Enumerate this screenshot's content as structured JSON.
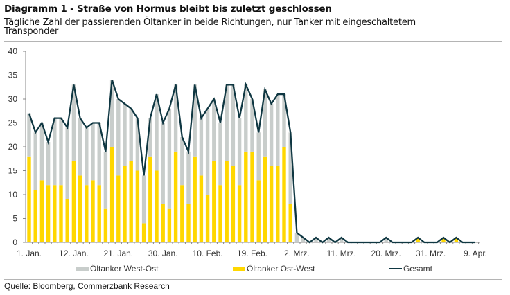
{
  "chart_data": {
    "type": "bar",
    "stacked": true,
    "title": "Diagramm 1 - Straße von Hormus bleibt bis zuletzt geschlossen",
    "subtitle": "Tägliche Zahl der passierenden Öltanker in beide Richtungen, nur Tanker mit eingeschaltetem Transponder",
    "xlabel": "",
    "ylabel": "",
    "ylim": [
      0,
      40
    ],
    "yticks": [
      "0",
      "5",
      "10",
      "15",
      "20",
      "25",
      "30",
      "35",
      "40"
    ],
    "xtick_labels": [
      {
        "index": 0,
        "label": "1. Jan."
      },
      {
        "index": 7,
        "label": "12. Jan."
      },
      {
        "index": 14,
        "label": "21. Jan."
      },
      {
        "index": 21,
        "label": "30. Jan."
      },
      {
        "index": 28,
        "label": "10. Feb."
      },
      {
        "index": 35,
        "label": "19. Feb."
      },
      {
        "index": 42,
        "label": "2. Mrz."
      },
      {
        "index": 49,
        "label": "11. Mrz."
      },
      {
        "index": 56,
        "label": "20. Mrz."
      },
      {
        "index": 63,
        "label": "31. Mrz."
      },
      {
        "index": 70,
        "label": "9. Apr."
      }
    ],
    "legend_position": "bottom",
    "series": [
      {
        "name": "Öltanker West-Ost",
        "type": "bar",
        "color": "#c8cdcb",
        "values": [
          9,
          12,
          12,
          9,
          14,
          14,
          15,
          16,
          12,
          12,
          12,
          13,
          12,
          14,
          16,
          13,
          11,
          11,
          10,
          8,
          16,
          17,
          21,
          14,
          10,
          11,
          15,
          12,
          18,
          13,
          13,
          16,
          17,
          14,
          14,
          11,
          10,
          14,
          13,
          15,
          11,
          15,
          2,
          1,
          0,
          1,
          0,
          1,
          0,
          1,
          0,
          0,
          0,
          0,
          0,
          0,
          1,
          0,
          0,
          0,
          0,
          0,
          0,
          0,
          0,
          0,
          0,
          0,
          0,
          0,
          0
        ]
      },
      {
        "name": "Öltanker Ost-West",
        "type": "bar",
        "color": "#ffd700",
        "values": [
          18,
          11,
          13,
          12,
          12,
          12,
          9,
          17,
          14,
          12,
          13,
          12,
          7,
          20,
          14,
          16,
          17,
          15,
          4,
          18,
          15,
          8,
          7,
          19,
          12,
          8,
          18,
          14,
          10,
          17,
          12,
          17,
          16,
          12,
          19,
          19,
          13,
          18,
          16,
          16,
          20,
          8,
          0,
          0,
          0,
          0,
          0,
          0,
          0,
          0,
          0,
          0,
          0,
          0,
          0,
          0,
          0,
          0,
          0,
          0,
          0,
          1,
          0,
          0,
          0,
          1,
          0,
          1,
          0,
          0,
          0
        ]
      },
      {
        "name": "Gesamt",
        "type": "line",
        "color": "#0f3742",
        "values": [
          27,
          23,
          25,
          21,
          26,
          26,
          24,
          33,
          26,
          24,
          25,
          25,
          19,
          34,
          30,
          29,
          28,
          26,
          14,
          26,
          31,
          25,
          28,
          33,
          22,
          19,
          33,
          26,
          28,
          30,
          25,
          33,
          33,
          26,
          33,
          30,
          23,
          32,
          29,
          31,
          31,
          23,
          2,
          1,
          0,
          1,
          0,
          1,
          0,
          1,
          0,
          0,
          0,
          0,
          0,
          0,
          1,
          0,
          0,
          0,
          0,
          1,
          0,
          0,
          0,
          1,
          0,
          1,
          0,
          0,
          0
        ]
      }
    ]
  },
  "source": "Quelle: Bloomberg, Commerzbank Research"
}
